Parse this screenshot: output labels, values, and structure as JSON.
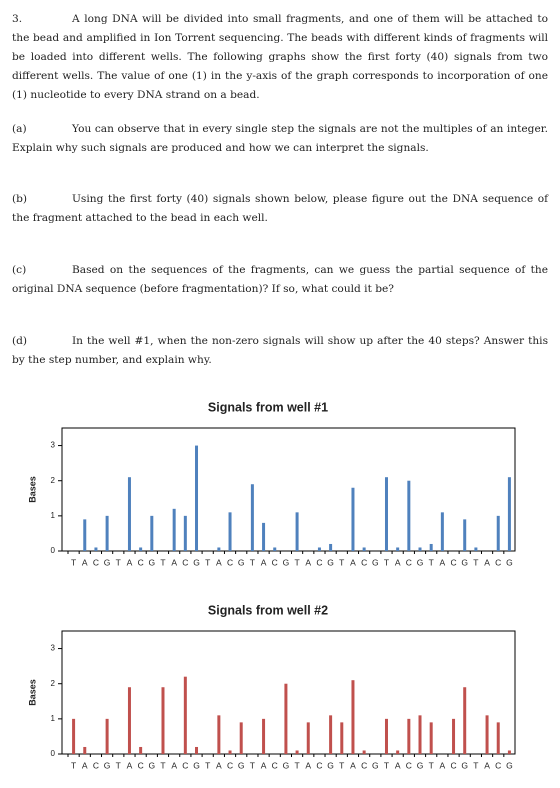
{
  "problem": {
    "number": "3.",
    "intro": "A long DNA will be divided into small fragments, and one of them will be attached to the bead and amplified in Ion Torrent sequencing. The beads with different kinds of fragments will be loaded into different wells. The following graphs show the first forty (40) signals from two different wells. The value of one (1) in the y-axis of the graph corresponds to incorporation of one (1) nucleotide to every DNA strand on a bead.",
    "parts": [
      {
        "label": "(a)",
        "text": "You can observe that in every single step the signals are not the multiples of an integer. Explain why such signals are produced and how we can interpret the signals."
      },
      {
        "label": "(b)",
        "text": "Using the first forty (40) signals shown below, please figure out the DNA sequence of the fragment attached to the bead in each well."
      },
      {
        "label": "(c)",
        "text": "Based on the sequences of the fragments, can we guess the partial sequence of the original DNA sequence (before fragmentation)? If so, what could it be?"
      },
      {
        "label": "(d)",
        "text": "In the well #1, when the non-zero signals will show up after the 40 steps? Answer this by the step number, and explain why."
      }
    ]
  },
  "chart_data": [
    {
      "type": "bar",
      "title": "Signals from well #1",
      "ylabel": "Bases",
      "categories": [
        "T",
        "A",
        "C",
        "G",
        "T",
        "A",
        "C",
        "G",
        "T",
        "A",
        "C",
        "G",
        "T",
        "A",
        "C",
        "G",
        "T",
        "A",
        "C",
        "G",
        "T",
        "A",
        "C",
        "G",
        "T",
        "A",
        "C",
        "G",
        "T",
        "A",
        "C",
        "G",
        "T",
        "A",
        "C",
        "G",
        "T",
        "A",
        "C",
        "G"
      ],
      "values": [
        0,
        0.9,
        0.1,
        1.0,
        0,
        2.1,
        0.1,
        1.0,
        0,
        1.2,
        1.0,
        3.0,
        0,
        0.1,
        1.1,
        0,
        1.9,
        0.8,
        0.1,
        0,
        1.1,
        0,
        0.1,
        0.2,
        0,
        1.8,
        0.1,
        0,
        2.1,
        0.1,
        2.0,
        0.1,
        0.2,
        1.1,
        0,
        0.9,
        0.1,
        0,
        1.0,
        2.1
      ],
      "color": "#4f81bd",
      "ylim": [
        0,
        3.5
      ],
      "yticks": [
        0,
        1,
        2,
        3
      ]
    },
    {
      "type": "bar",
      "title": "Signals from well #2",
      "ylabel": "Bases",
      "categories": [
        "T",
        "A",
        "C",
        "G",
        "T",
        "A",
        "C",
        "G",
        "T",
        "A",
        "C",
        "G",
        "T",
        "A",
        "C",
        "G",
        "T",
        "A",
        "C",
        "G",
        "T",
        "A",
        "C",
        "G",
        "T",
        "A",
        "C",
        "G",
        "T",
        "A",
        "C",
        "G",
        "T",
        "A",
        "C",
        "G",
        "T",
        "A",
        "C",
        "G"
      ],
      "values": [
        1.0,
        0.2,
        0,
        1.0,
        0,
        1.9,
        0.2,
        0,
        1.9,
        0,
        2.2,
        0.2,
        0,
        1.1,
        0.1,
        0.9,
        0,
        1.0,
        0,
        2.0,
        0.1,
        0.9,
        0,
        1.1,
        0.9,
        2.1,
        0.1,
        0,
        1.0,
        0.1,
        1.0,
        1.1,
        0.9,
        0,
        1.0,
        1.9,
        0,
        1.1,
        0.9,
        0.1
      ],
      "color": "#c0504d",
      "ylim": [
        0,
        3.5
      ],
      "yticks": [
        0,
        1,
        2,
        3
      ]
    }
  ]
}
